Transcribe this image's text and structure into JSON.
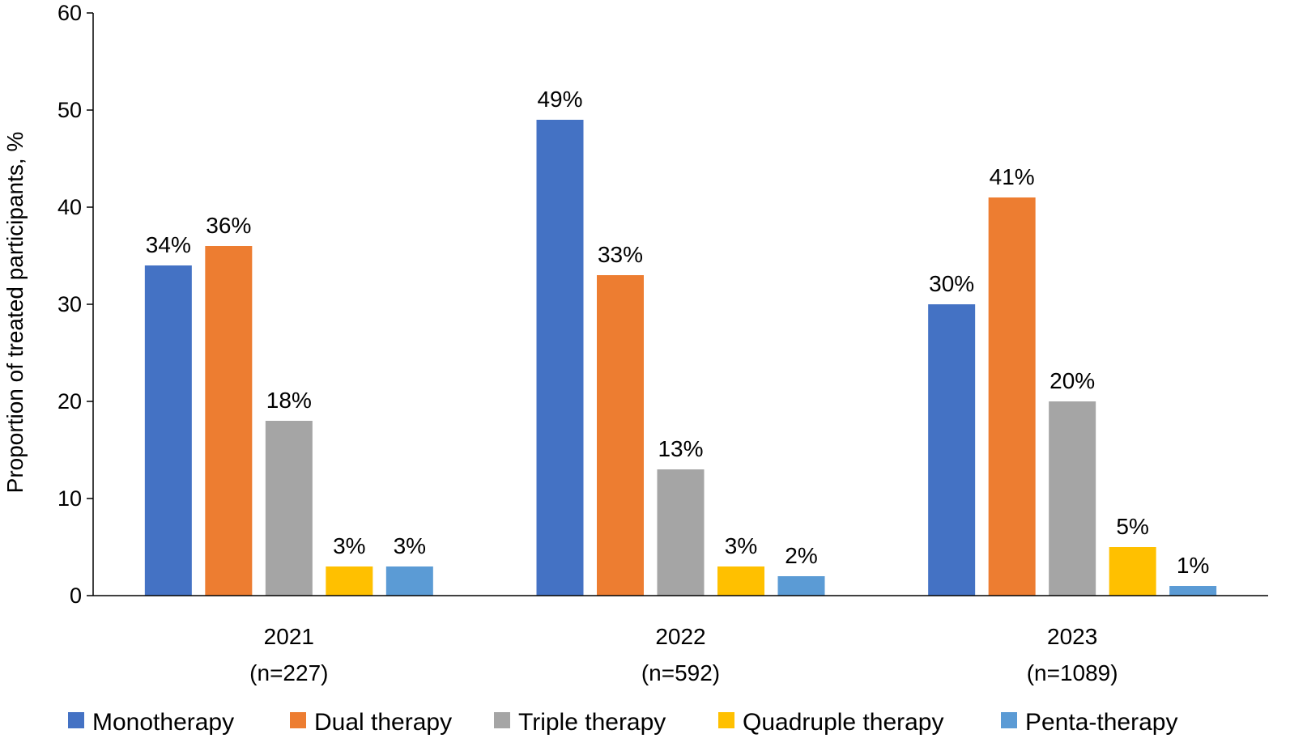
{
  "chart_data": {
    "type": "bar",
    "title": "",
    "xlabel": "",
    "ylabel": "Proportion of treated participants, %",
    "ylim": [
      0,
      60
    ],
    "yticks": [
      0,
      10,
      20,
      30,
      40,
      50,
      60
    ],
    "grid": false,
    "legend_position": "bottom",
    "categories": [
      {
        "line1": "2021",
        "line2": "(n=227)"
      },
      {
        "line1": "2022",
        "line2": "(n=592)"
      },
      {
        "line1": "2023",
        "line2": "(n=1089)"
      }
    ],
    "series": [
      {
        "name": "Monotherapy",
        "color": "#4472C4",
        "values": [
          34,
          49,
          30
        ],
        "labels": [
          "34%",
          "49%",
          "30%"
        ]
      },
      {
        "name": "Dual therapy",
        "color": "#ED7D31",
        "values": [
          36,
          33,
          41
        ],
        "labels": [
          "36%",
          "33%",
          "41%"
        ]
      },
      {
        "name": "Triple therapy",
        "color": "#A5A5A5",
        "values": [
          18,
          13,
          20
        ],
        "labels": [
          "18%",
          "13%",
          "20%"
        ]
      },
      {
        "name": "Quadruple therapy",
        "color": "#FFC000",
        "values": [
          3,
          3,
          5
        ],
        "labels": [
          "3%",
          "3%",
          "5%"
        ]
      },
      {
        "name": "Penta-therapy",
        "color": "#5B9BD5",
        "values": [
          3,
          2,
          1
        ],
        "labels": [
          "3%",
          "2%",
          "1%"
        ]
      }
    ]
  }
}
